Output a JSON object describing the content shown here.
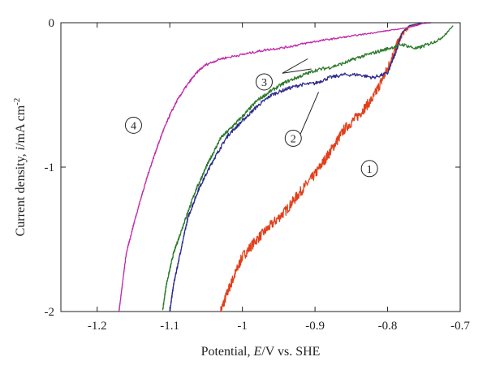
{
  "chart_data": {
    "type": "line",
    "xlabel_parts": {
      "pre": "Potential, ",
      "italic": "E",
      "post": "/V vs. SHE"
    },
    "ylabel_parts": {
      "pre": "Current density, ",
      "italic": "i",
      "post": "/mA cm",
      "sup": "-2"
    },
    "xlim": [
      -1.25,
      -0.7
    ],
    "ylim": [
      -2,
      0
    ],
    "xticks": [
      -1.2,
      -1.1,
      -1.0,
      -0.9,
      -0.8,
      -0.7
    ],
    "xtick_labels": [
      "-1.2",
      "-1.1",
      "-1",
      "-0.9",
      "-0.8",
      "-0.7"
    ],
    "yticks": [
      0,
      -1,
      -2
    ],
    "ytick_labels": [
      "0",
      "-1",
      "-2"
    ],
    "grid": false,
    "series": [
      {
        "id": "1",
        "color": "#e0401c",
        "noise": 0.035,
        "points": [
          [
            -1.03,
            -2.0
          ],
          [
            -1.02,
            -1.86
          ],
          [
            -1.01,
            -1.74
          ],
          [
            -1.0,
            -1.62
          ],
          [
            -0.98,
            -1.5
          ],
          [
            -0.96,
            -1.4
          ],
          [
            -0.94,
            -1.3
          ],
          [
            -0.92,
            -1.17
          ],
          [
            -0.9,
            -1.05
          ],
          [
            -0.88,
            -0.9
          ],
          [
            -0.86,
            -0.74
          ],
          [
            -0.84,
            -0.64
          ],
          [
            -0.82,
            -0.52
          ],
          [
            -0.8,
            -0.32
          ],
          [
            -0.79,
            -0.19
          ],
          [
            -0.78,
            -0.08
          ],
          [
            -0.77,
            -0.03
          ],
          [
            -0.76,
            -0.01
          ],
          [
            -0.74,
            0.0
          ]
        ]
      },
      {
        "id": "2",
        "color": "#2e2a8c",
        "noise": 0.012,
        "points": [
          [
            -1.1,
            -2.0
          ],
          [
            -1.095,
            -1.82
          ],
          [
            -1.085,
            -1.58
          ],
          [
            -1.075,
            -1.35
          ],
          [
            -1.06,
            -1.15
          ],
          [
            -1.04,
            -0.95
          ],
          [
            -1.02,
            -0.78
          ],
          [
            -1.0,
            -0.68
          ],
          [
            -0.98,
            -0.58
          ],
          [
            -0.96,
            -0.5
          ],
          [
            -0.94,
            -0.46
          ],
          [
            -0.92,
            -0.43
          ],
          [
            -0.9,
            -0.42
          ],
          [
            -0.88,
            -0.38
          ],
          [
            -0.86,
            -0.36
          ],
          [
            -0.84,
            -0.36
          ],
          [
            -0.82,
            -0.38
          ],
          [
            -0.8,
            -0.35
          ],
          [
            -0.79,
            -0.22
          ],
          [
            -0.78,
            -0.07
          ],
          [
            -0.77,
            -0.02
          ],
          [
            -0.75,
            0.0
          ],
          [
            -0.74,
            0.0
          ]
        ]
      },
      {
        "id": "3",
        "color": "#2a7a2a",
        "noise": 0.012,
        "points": [
          [
            -1.11,
            -2.0
          ],
          [
            -1.105,
            -1.82
          ],
          [
            -1.095,
            -1.6
          ],
          [
            -1.08,
            -1.38
          ],
          [
            -1.065,
            -1.17
          ],
          [
            -1.05,
            -1.0
          ],
          [
            -1.03,
            -0.8
          ],
          [
            -1.0,
            -0.65
          ],
          [
            -0.98,
            -0.54
          ],
          [
            -0.96,
            -0.47
          ],
          [
            -0.94,
            -0.41
          ],
          [
            -0.92,
            -0.37
          ],
          [
            -0.9,
            -0.33
          ],
          [
            -0.88,
            -0.31
          ],
          [
            -0.86,
            -0.28
          ],
          [
            -0.84,
            -0.24
          ],
          [
            -0.82,
            -0.21
          ],
          [
            -0.8,
            -0.18
          ],
          [
            -0.78,
            -0.15
          ],
          [
            -0.76,
            -0.18
          ],
          [
            -0.75,
            -0.16
          ],
          [
            -0.74,
            -0.14
          ],
          [
            -0.73,
            -0.12
          ],
          [
            -0.72,
            -0.08
          ],
          [
            -0.71,
            -0.02
          ]
        ]
      },
      {
        "id": "4",
        "color": "#c02aa8",
        "noise": 0.008,
        "points": [
          [
            -1.17,
            -2.0
          ],
          [
            -1.165,
            -1.8
          ],
          [
            -1.16,
            -1.6
          ],
          [
            -1.15,
            -1.4
          ],
          [
            -1.14,
            -1.22
          ],
          [
            -1.13,
            -1.05
          ],
          [
            -1.12,
            -0.9
          ],
          [
            -1.11,
            -0.76
          ],
          [
            -1.1,
            -0.64
          ],
          [
            -1.09,
            -0.54
          ],
          [
            -1.08,
            -0.46
          ],
          [
            -1.07,
            -0.39
          ],
          [
            -1.06,
            -0.33
          ],
          [
            -1.05,
            -0.29
          ],
          [
            -1.03,
            -0.25
          ],
          [
            -1.0,
            -0.22
          ],
          [
            -0.97,
            -0.19
          ],
          [
            -0.94,
            -0.17
          ],
          [
            -0.9,
            -0.13
          ],
          [
            -0.86,
            -0.1
          ],
          [
            -0.82,
            -0.07
          ],
          [
            -0.78,
            -0.04
          ],
          [
            -0.76,
            -0.02
          ],
          [
            -0.75,
            0.0
          ]
        ]
      }
    ],
    "markers": [
      {
        "label": "1",
        "x": -0.825,
        "y": -1.01
      },
      {
        "label": "2",
        "x": -0.93,
        "y": -0.8
      },
      {
        "label": "3",
        "x": -0.97,
        "y": -0.41
      },
      {
        "label": "4",
        "x": -1.15,
        "y": -0.71
      }
    ],
    "leaders": [
      [
        [
          -0.92,
          -0.77
        ],
        [
          -0.895,
          -0.48
        ]
      ],
      [
        [
          -0.945,
          -0.35
        ],
        [
          -0.91,
          -0.25
        ]
      ],
      [
        [
          -0.945,
          -0.35
        ],
        [
          -0.905,
          -0.32
        ]
      ]
    ]
  }
}
